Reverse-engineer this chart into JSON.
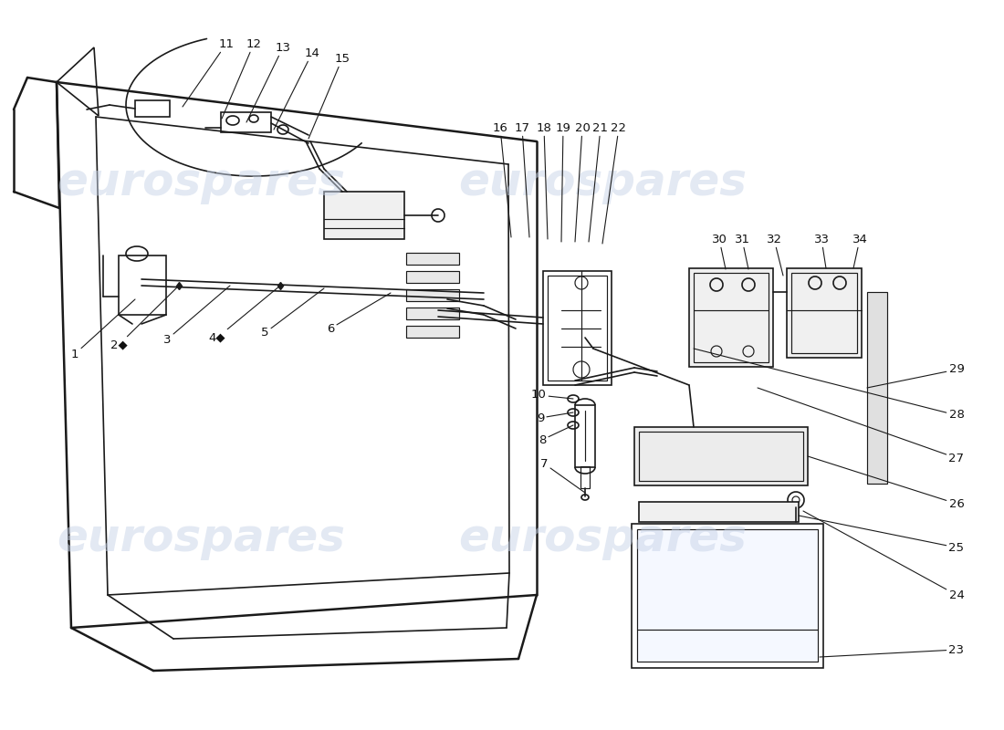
{
  "title": "",
  "bg_color": "#ffffff",
  "watermark_text": "eurospares",
  "watermark_color": "#c8d4e8",
  "line_color": "#1a1a1a",
  "label_color": "#111111",
  "figsize": [
    11.0,
    8.0
  ],
  "dpi": 100
}
